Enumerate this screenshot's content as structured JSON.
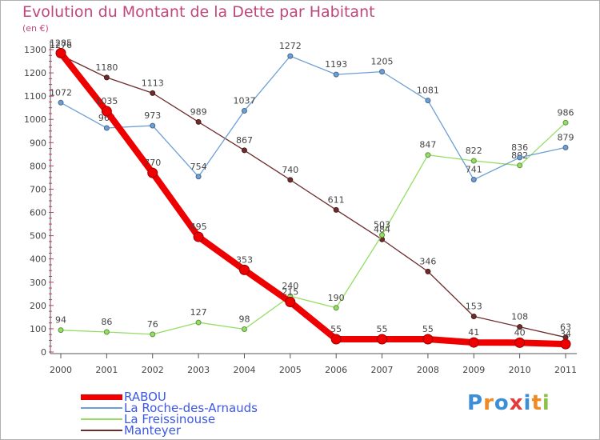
{
  "chart_data": {
    "type": "line",
    "title": "Evolution du Montant de la Dette par Habitant",
    "unit_label": "(en €)",
    "x": [
      "2000",
      "2001",
      "2002",
      "2003",
      "2004",
      "2005",
      "2006",
      "2007",
      "2008",
      "2009",
      "2010",
      "2011"
    ],
    "ylim": [
      0,
      1300
    ],
    "yticks": [
      0,
      100,
      200,
      300,
      400,
      500,
      600,
      700,
      800,
      900,
      1000,
      1100,
      1200,
      1300
    ],
    "grid": false,
    "legend_position": "bottom-left",
    "series": [
      {
        "name": "Manteyer",
        "color": "#6e2c2c",
        "values": [
          1276,
          1180,
          1113,
          989,
          867,
          740,
          611,
          484,
          346,
          153,
          108,
          63
        ]
      },
      {
        "name": "La Freissinouse",
        "color": "#93de63",
        "values": [
          94,
          86,
          76,
          127,
          98,
          240,
          190,
          503,
          847,
          822,
          802,
          986
        ]
      },
      {
        "name": "La Roche-des-Arnauds",
        "color": "#6c9fd5",
        "values": [
          1072,
          963,
          973,
          754,
          1037,
          1272,
          1193,
          1205,
          1081,
          741,
          836,
          879
        ]
      },
      {
        "name": "RABOU",
        "color": "#ee0000",
        "values": [
          1285,
          1035,
          770,
          495,
          353,
          215,
          55,
          55,
          55,
          41,
          40,
          34
        ]
      }
    ]
  },
  "legend_items": [
    {
      "name": "RABOU",
      "color": "#ee0000"
    },
    {
      "name": "La Roche-des-Arnauds",
      "color": "#6c9fd5"
    },
    {
      "name": "La Freissinouse",
      "color": "#93de63"
    },
    {
      "name": "Manteyer",
      "color": "#6e2c2c"
    }
  ],
  "brand": {
    "text": "Proxiti",
    "letter_colors": [
      "#3a8fd8",
      "#f08a24",
      "#3a8fd8",
      "#e23b3b",
      "#3a8fd8",
      "#f08a24",
      "#8bc34a"
    ]
  }
}
